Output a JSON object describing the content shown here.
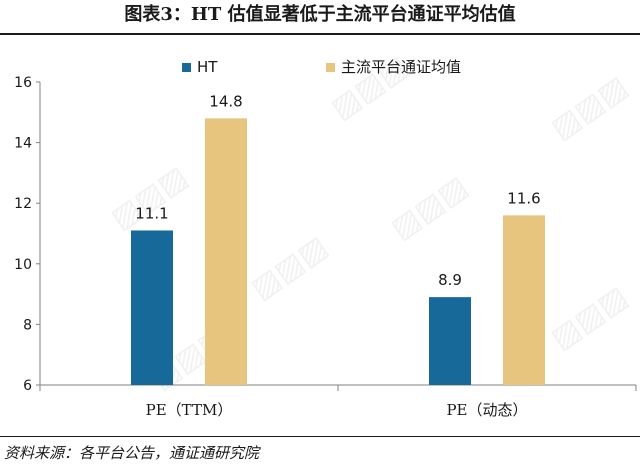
{
  "title": "图表3：HT 估值显著低于主流平台通证平均估值",
  "source": "资料来源：各平台公告，通证通研究院",
  "colors": {
    "ht": "#17699a",
    "avg": "#e8c57f",
    "axis": "#808080"
  },
  "chart_data": {
    "type": "bar",
    "categories": [
      "PE（TTM）",
      "PE（动态）"
    ],
    "series": [
      {
        "name": "HT",
        "values": [
          11.1,
          8.9
        ]
      },
      {
        "name": "主流平台通证均值",
        "values": [
          14.8,
          11.6
        ]
      }
    ],
    "value_labels": [
      [
        "11.1",
        "8.9"
      ],
      [
        "14.8",
        "11.6"
      ]
    ],
    "ylim": [
      6,
      16
    ],
    "yticks": [
      6,
      8,
      10,
      12,
      14,
      16
    ],
    "ytick_labels": [
      "6",
      "8",
      "10",
      "12",
      "14",
      "16"
    ],
    "legend_position": "top-center",
    "grid": false
  }
}
